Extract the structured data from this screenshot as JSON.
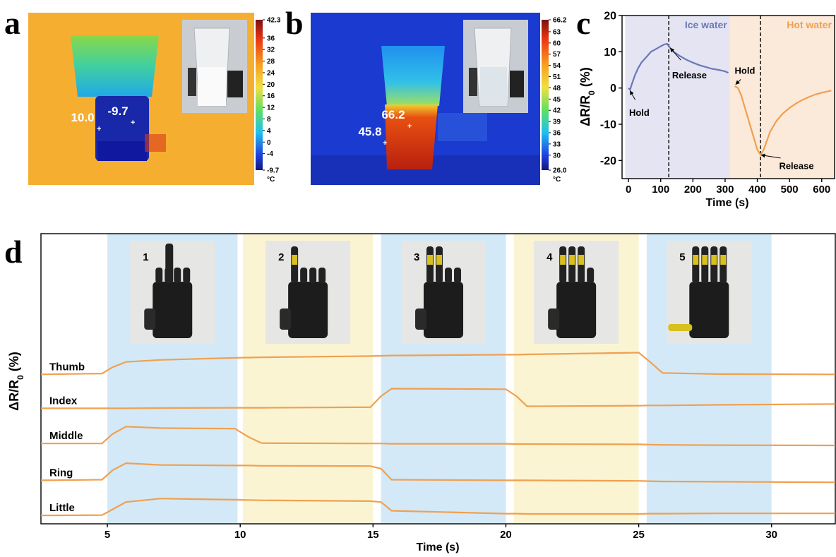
{
  "panel_labels": [
    "a",
    "b",
    "c",
    "d"
  ],
  "thermal_images": [
    {
      "spot_labels": [
        "10.0",
        "-9.7"
      ],
      "colorbar": {
        "lim": [
          -9.7,
          42.3
        ],
        "ticks": [
          42.3,
          36,
          32,
          28,
          24,
          20,
          16,
          12,
          8,
          4,
          0,
          -4,
          -9.7
        ],
        "unit": "°C"
      }
    },
    {
      "spot_labels": [
        "66.2",
        "45.8"
      ],
      "colorbar": {
        "lim": [
          26,
          66.2
        ],
        "ticks": [
          66.2,
          63,
          60,
          57,
          54,
          51,
          48,
          45,
          42,
          39,
          36,
          33,
          30,
          {
            "value": 26,
            "label": "26.0"
          }
        ],
        "unit": "°C"
      }
    }
  ],
  "chart_data": [
    {
      "type": "line",
      "xlabel": "Time (s)",
      "ylabel": [
        "ΔR/R",
        "0",
        " (%)"
      ],
      "xlim": [
        -20,
        640
      ],
      "xticks": [
        0,
        100,
        200,
        300,
        400,
        500,
        600
      ],
      "ylim": [
        -25,
        20
      ],
      "yticks": [
        -20,
        -10,
        0,
        10,
        20
      ],
      "regions": [
        {
          "xrange": [
            -10,
            315
          ],
          "color": "#e4e4f2"
        },
        {
          "xrange": [
            315,
            640
          ],
          "color": "#fbe9d9"
        }
      ],
      "vlines": [
        125,
        410
      ],
      "series": [
        {
          "name": "Ice water",
          "color": "#6b78b8",
          "x": [
            0,
            5,
            10,
            20,
            30,
            40,
            50,
            60,
            70,
            80,
            90,
            100,
            110,
            120,
            130,
            140,
            160,
            180,
            200,
            220,
            240,
            260,
            280,
            300,
            310
          ],
          "values": [
            0,
            -0.5,
            1,
            3.5,
            5.5,
            7,
            8,
            9,
            10,
            10.5,
            11,
            11.5,
            12,
            12.2,
            11,
            10,
            8.8,
            7.8,
            7,
            6.3,
            5.8,
            5.3,
            5,
            4.6,
            4.2
          ]
        },
        {
          "name": "Hot water",
          "color": "#f0a050",
          "x": [
            330,
            340,
            350,
            360,
            370,
            380,
            390,
            400,
            410,
            420,
            430,
            440,
            460,
            480,
            500,
            520,
            540,
            560,
            580,
            600,
            620,
            630
          ],
          "values": [
            0.5,
            0,
            -2,
            -5,
            -8,
            -11,
            -14,
            -17,
            -18.5,
            -17,
            -14.5,
            -12,
            -9,
            -7,
            -5.5,
            -4.3,
            -3.3,
            -2.5,
            -1.8,
            -1.3,
            -0.9,
            -0.7
          ]
        }
      ],
      "annotations": [
        {
          "text": "Hold",
          "x": 5,
          "y": -0.8
        },
        {
          "text": "Release",
          "x": 130,
          "y": 11
        },
        {
          "text": "Hold",
          "x": 333,
          "y": 1
        },
        {
          "text": "Release",
          "x": 412,
          "y": -18.5
        }
      ]
    },
    {
      "type": "line",
      "xlabel": "Time (s)",
      "ylabel": [
        "ΔR/R",
        "0",
        " (%)"
      ],
      "xlim": [
        2.5,
        32.4
      ],
      "xticks": [
        5,
        10,
        15,
        20,
        25,
        30
      ],
      "ylim": [
        0,
        100
      ],
      "regions": [
        {
          "label": "1",
          "xrange": [
            5,
            9.9
          ],
          "color": "#d3e9f7"
        },
        {
          "label": "2",
          "xrange": [
            10.1,
            15
          ],
          "color": "#faf4d3"
        },
        {
          "label": "3",
          "xrange": [
            15.3,
            20
          ],
          "color": "#d3e9f7"
        },
        {
          "label": "4",
          "xrange": [
            20.3,
            25
          ],
          "color": "#faf4d3"
        },
        {
          "label": "5",
          "xrange": [
            25.3,
            30
          ],
          "color": "#d3e9f7"
        }
      ],
      "x": [
        2.5,
        4.8,
        5.2,
        5.7,
        7,
        9.8,
        10.3,
        10.8,
        14.9,
        15.3,
        15.7,
        20,
        20.4,
        20.8,
        25,
        25.4,
        25.9,
        28,
        32.4
      ],
      "series": [
        {
          "name": "Thumb",
          "color": "#f0a050",
          "values": [
            51.5,
            51.8,
            54,
            55.8,
            56.5,
            57.2,
            57.3,
            57.4,
            57.8,
            57.9,
            58,
            58.3,
            58.3,
            58.4,
            59,
            56,
            52,
            51.6,
            51.5
          ]
        },
        {
          "name": "Index",
          "color": "#f0a050",
          "values": [
            39.8,
            39.8,
            39.8,
            39.8,
            39.9,
            40,
            40,
            40,
            40.2,
            44,
            46.6,
            46.4,
            44,
            40.5,
            40.7,
            40.8,
            40.8,
            41,
            41.3
          ]
        },
        {
          "name": "Middle",
          "color": "#f0a050",
          "values": [
            27.7,
            27.7,
            31,
            33.5,
            33,
            32.8,
            30,
            27.8,
            27.7,
            27.7,
            27.6,
            27.6,
            27.5,
            27.5,
            27.4,
            27.3,
            27.2,
            27.1,
            27
          ]
        },
        {
          "name": "Ring",
          "color": "#f0a050",
          "values": [
            15,
            15.2,
            18.5,
            20.9,
            20.3,
            20.1,
            20.1,
            20,
            19.9,
            19,
            15.2,
            15,
            15,
            15,
            14.8,
            14.7,
            14.6,
            14.5,
            14.3
          ]
        },
        {
          "name": "Little",
          "color": "#f0a050",
          "values": [
            2.9,
            3,
            5,
            7.5,
            8.7,
            8.3,
            8.2,
            8.1,
            7.8,
            7.5,
            4.5,
            3.5,
            3.5,
            3.4,
            3.4,
            3.5,
            3.5,
            3.6,
            3.6
          ]
        }
      ]
    }
  ]
}
